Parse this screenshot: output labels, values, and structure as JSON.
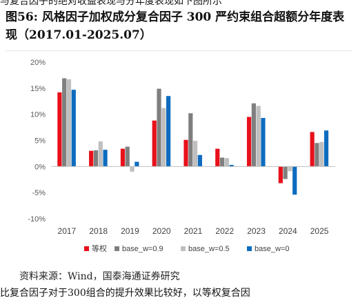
{
  "header_fragment": "与复合因子的绝对收益表现与分年度表现如下图所示",
  "figure_title": "图56:  风格因子加权成分复合因子  300  严约束组合超额分年度表现（2017.01-2025.07）",
  "source_note": "资料来源：Wind，国泰海通证券研究",
  "footer_fragment": "比复合因子对于300组合的提升效果比较好，以等权复合因",
  "chart_data": {
    "type": "bar",
    "categories": [
      "2017",
      "2018",
      "2019",
      "2020",
      "2021",
      "2022",
      "2023",
      "2024",
      "2025"
    ],
    "series": [
      {
        "name": "等权",
        "color": "#e8101a",
        "values": [
          14.2,
          3.0,
          3.4,
          8.8,
          5.1,
          3.4,
          9.5,
          -3.2,
          6.6
        ]
      },
      {
        "name": "base_w=0.9",
        "color": "#7f7f7f",
        "values": [
          16.9,
          3.1,
          3.8,
          14.9,
          10.2,
          1.7,
          12.1,
          -2.4,
          4.5
        ]
      },
      {
        "name": "base_w=0.5",
        "color": "#bfbfbf",
        "values": [
          16.7,
          4.8,
          -1.0,
          11.2,
          4.9,
          1.6,
          11.6,
          -0.9,
          4.7
        ]
      },
      {
        "name": "base_w=0",
        "color": "#0d6cbf",
        "values": [
          14.7,
          3.2,
          0.9,
          13.5,
          2.2,
          0.3,
          9.3,
          -5.4,
          6.9
        ]
      }
    ],
    "ylim": [
      -10,
      20
    ],
    "yticks": [
      -10,
      -5,
      0,
      5,
      10,
      15,
      20
    ],
    "ytick_labels": [
      "-10%",
      "-5%",
      "0%",
      "5%",
      "10%",
      "15%",
      "20%"
    ],
    "grid": false,
    "legend_position": "bottom"
  }
}
